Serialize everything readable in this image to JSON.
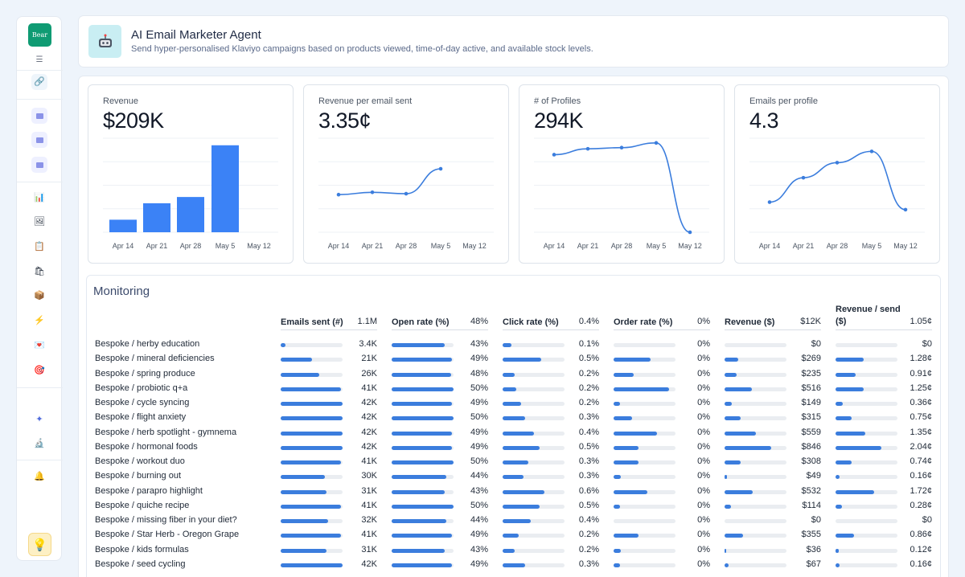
{
  "sidebar": {
    "logo": "Bear",
    "icons": [
      "menu-icon",
      "link-icon",
      "folder-icon",
      "folder-icon",
      "folder-icon",
      "bar-chart-icon",
      "image-icon",
      "clipboard-icon",
      "gift-icon",
      "box-icon",
      "bolt-icon",
      "heart-icon",
      "target-icon",
      "sparkle-icon",
      "microscope-icon",
      "bell-icon",
      "lightbulb-icon"
    ]
  },
  "header": {
    "title": "AI Email Marketer Agent",
    "subtitle": "Send hyper-personalised Klaviyo campaigns based on products viewed, time-of-day active, and available stock levels."
  },
  "kpis": [
    {
      "label": "Revenue",
      "value": "$209K"
    },
    {
      "label": "Revenue per email sent",
      "value": "3.35¢"
    },
    {
      "label": "# of Profiles",
      "value": "294K"
    },
    {
      "label": "Emails per profile",
      "value": "4.3"
    }
  ],
  "chart_data": [
    {
      "type": "bar",
      "title": "Revenue",
      "categories": [
        "Apr 14",
        "Apr 21",
        "Apr 28",
        "May 5",
        "May 12"
      ],
      "values": [
        16,
        37,
        45,
        111,
        0
      ]
    },
    {
      "type": "line",
      "title": "Revenue per email sent",
      "categories": [
        "Apr 14",
        "Apr 21",
        "Apr 28",
        "May 5",
        "May 12"
      ],
      "values": [
        2.8,
        2.85,
        2.82,
        3.35,
        null
      ]
    },
    {
      "type": "line",
      "title": "# of Profiles",
      "categories": [
        "Apr 14",
        "Apr 21",
        "Apr 28",
        "May 5",
        "May 12"
      ],
      "values": [
        66,
        71,
        72,
        76,
        0
      ]
    },
    {
      "type": "line",
      "title": "Emails per profile",
      "categories": [
        "Apr 14",
        "Apr 21",
        "Apr 28",
        "May 5",
        "May 12"
      ],
      "values": [
        1.6,
        2.9,
        3.7,
        4.3,
        1.2
      ]
    }
  ],
  "monitoring": {
    "title": "Monitoring",
    "columns": [
      {
        "name": "Emails sent (#)",
        "total": "1.1M"
      },
      {
        "name": "Open rate (%)",
        "total": "48%"
      },
      {
        "name": "Click rate (%)",
        "total": "0.4%"
      },
      {
        "name": "Order rate (%)",
        "total": "0%"
      },
      {
        "name": "Revenue ($)",
        "total": "$12K"
      },
      {
        "name": "Revenue / send ($)",
        "total": "1.05¢"
      }
    ],
    "rows": [
      {
        "name": "Bespoke / herby education",
        "cells": [
          "3.4K",
          "43%",
          "0.1%",
          "0%",
          "$0",
          "$0"
        ],
        "bars": [
          0.08,
          0.86,
          0.14,
          0,
          0,
          0
        ]
      },
      {
        "name": "Bespoke / mineral deficiencies",
        "cells": [
          "21K",
          "49%",
          "0.5%",
          "0%",
          "$269",
          "1.28¢"
        ],
        "bars": [
          0.5,
          0.98,
          0.62,
          0.6,
          0.22,
          0.45
        ]
      },
      {
        "name": "Bespoke / spring produce",
        "cells": [
          "26K",
          "48%",
          "0.2%",
          "0%",
          "$235",
          "0.91¢"
        ],
        "bars": [
          0.62,
          0.96,
          0.2,
          0.32,
          0.2,
          0.33
        ]
      },
      {
        "name": "Bespoke / probiotic q+a",
        "cells": [
          "41K",
          "50%",
          "0.2%",
          "0%",
          "$516",
          "1.25¢"
        ],
        "bars": [
          0.98,
          1.0,
          0.22,
          0.9,
          0.44,
          0.45
        ]
      },
      {
        "name": "Bespoke / cycle syncing",
        "cells": [
          "42K",
          "49%",
          "0.2%",
          "0%",
          "$149",
          "0.36¢"
        ],
        "bars": [
          1.0,
          0.98,
          0.3,
          0.1,
          0.12,
          0.12
        ]
      },
      {
        "name": "Bespoke / flight anxiety",
        "cells": [
          "42K",
          "50%",
          "0.3%",
          "0%",
          "$315",
          "0.75¢"
        ],
        "bars": [
          1.0,
          1.0,
          0.36,
          0.3,
          0.26,
          0.26
        ]
      },
      {
        "name": "Bespoke / herb spotlight - gymnema",
        "cells": [
          "42K",
          "49%",
          "0.4%",
          "0%",
          "$559",
          "1.35¢"
        ],
        "bars": [
          1.0,
          0.98,
          0.5,
          0.7,
          0.5,
          0.48
        ]
      },
      {
        "name": "Bespoke / hormonal foods",
        "cells": [
          "42K",
          "49%",
          "0.5%",
          "0%",
          "$846",
          "2.04¢"
        ],
        "bars": [
          1.0,
          0.98,
          0.6,
          0.4,
          0.75,
          0.74
        ]
      },
      {
        "name": "Bespoke / workout duo",
        "cells": [
          "41K",
          "50%",
          "0.3%",
          "0%",
          "$308",
          "0.74¢"
        ],
        "bars": [
          0.98,
          1.0,
          0.42,
          0.4,
          0.26,
          0.26
        ]
      },
      {
        "name": "Bespoke / burning out",
        "cells": [
          "30K",
          "44%",
          "0.3%",
          "0%",
          "$49",
          "0.16¢"
        ],
        "bars": [
          0.72,
          0.88,
          0.34,
          0.12,
          0.04,
          0.06
        ]
      },
      {
        "name": "Bespoke / parapro highlight",
        "cells": [
          "31K",
          "43%",
          "0.6%",
          "0%",
          "$532",
          "1.72¢"
        ],
        "bars": [
          0.74,
          0.86,
          0.68,
          0.54,
          0.46,
          0.62
        ]
      },
      {
        "name": "Bespoke / quiche recipe",
        "cells": [
          "41K",
          "50%",
          "0.5%",
          "0%",
          "$114",
          "0.28¢"
        ],
        "bars": [
          0.98,
          1.0,
          0.6,
          0.1,
          0.1,
          0.1
        ]
      },
      {
        "name": "Bespoke / missing fiber in your diet?",
        "cells": [
          "32K",
          "44%",
          "0.4%",
          "0%",
          "$0",
          "$0"
        ],
        "bars": [
          0.76,
          0.88,
          0.46,
          0,
          0,
          0
        ]
      },
      {
        "name": "Bespoke / Star Herb - Oregon Grape",
        "cells": [
          "41K",
          "49%",
          "0.2%",
          "0%",
          "$355",
          "0.86¢"
        ],
        "bars": [
          0.98,
          0.98,
          0.26,
          0.4,
          0.3,
          0.3
        ]
      },
      {
        "name": "Bespoke / kids formulas",
        "cells": [
          "31K",
          "43%",
          "0.2%",
          "0%",
          "$36",
          "0.12¢"
        ],
        "bars": [
          0.74,
          0.86,
          0.2,
          0.12,
          0.03,
          0.05
        ]
      },
      {
        "name": "Bespoke / seed cycling",
        "cells": [
          "42K",
          "49%",
          "0.3%",
          "0%",
          "$67",
          "0.16¢"
        ],
        "bars": [
          1.0,
          0.98,
          0.36,
          0.1,
          0.06,
          0.06
        ]
      }
    ]
  },
  "colors": {
    "accent": "#3b7ddd",
    "brand": "#0f9b73"
  }
}
